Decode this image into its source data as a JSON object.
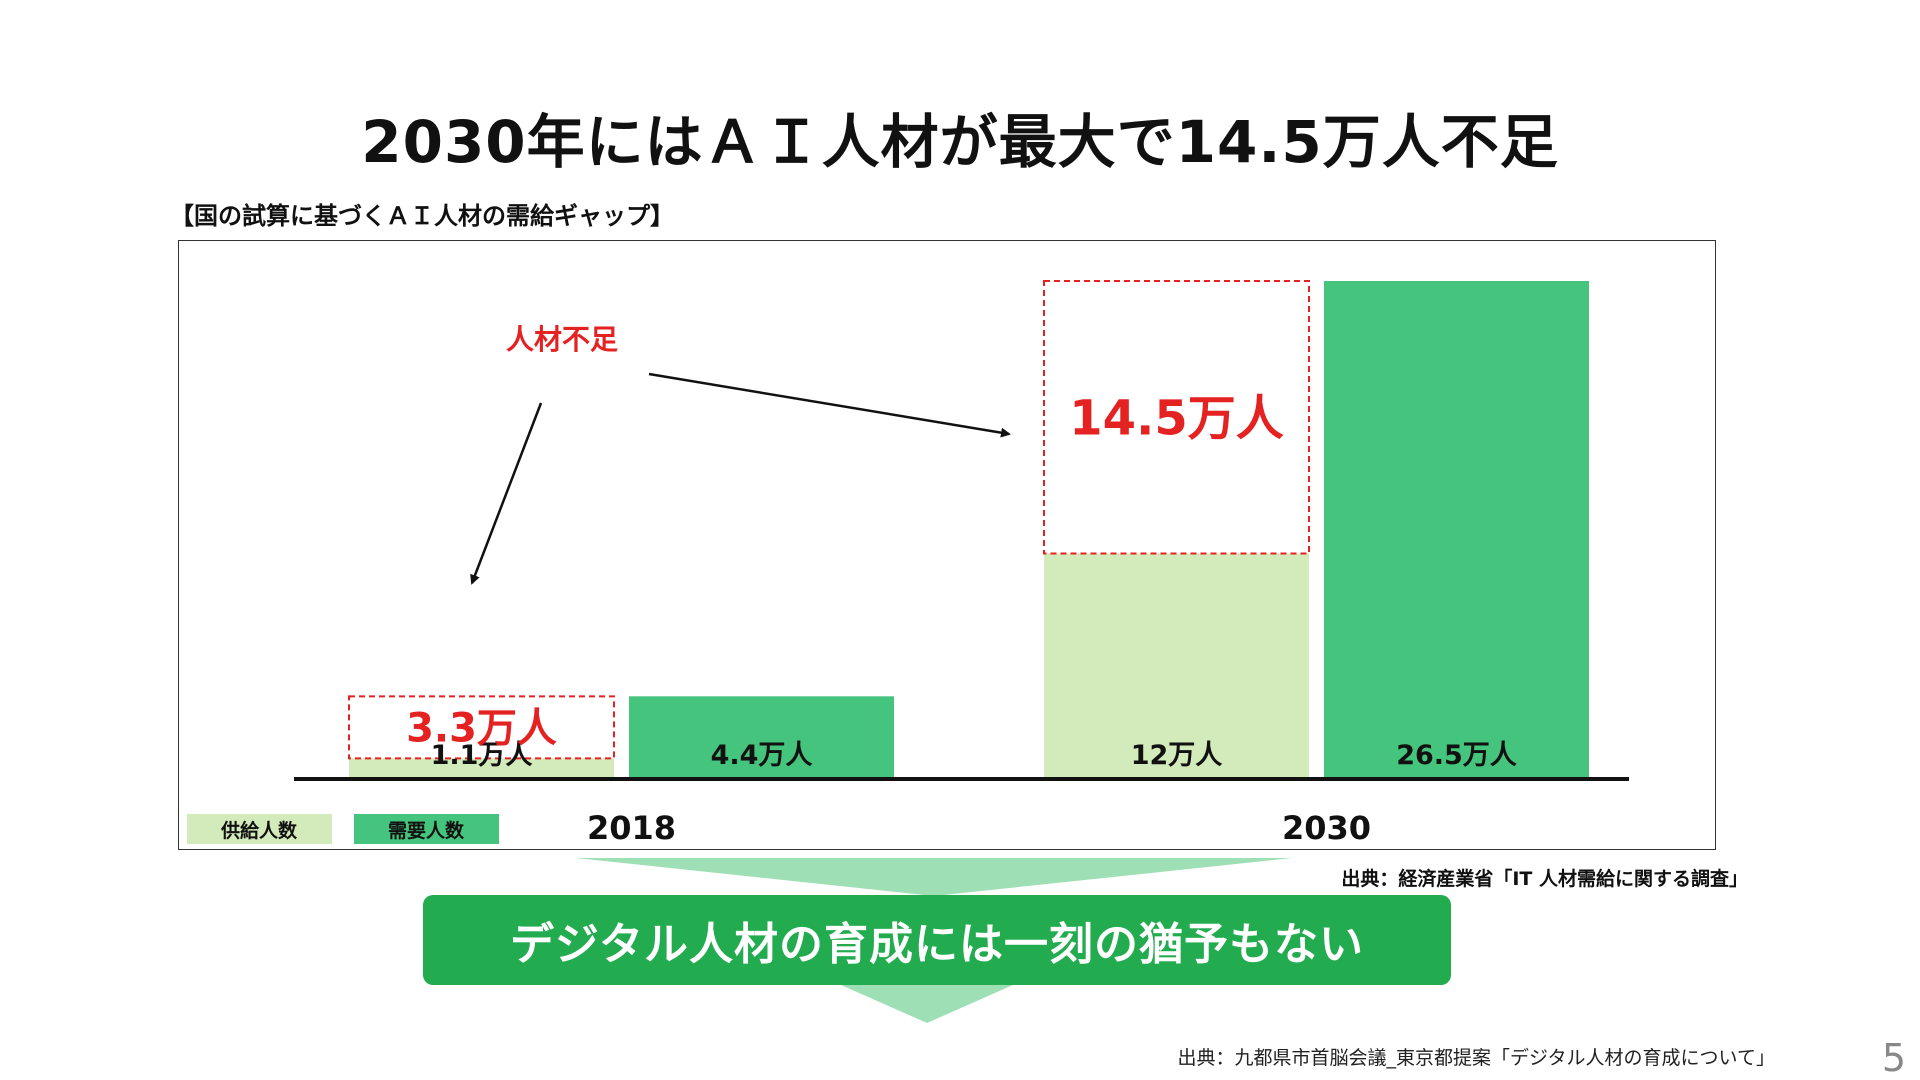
{
  "title": "2030年にはＡＩ人材が最大で14.5万人不足",
  "subtitle": "【国の試算に基づくＡＩ人材の需給ギャップ】",
  "colors": {
    "supply": "#d3ebbb",
    "demand": "#44c47c",
    "shortage": "#e52222",
    "banner": "#23ab50",
    "banner_tri": "#9fdfb6"
  },
  "chart_data": {
    "type": "bar",
    "categories": [
      "2018",
      "2030"
    ],
    "series": [
      {
        "name": "供給人数",
        "values": [
          1.1,
          12
        ],
        "labels": [
          "1.1万人",
          "12万人"
        ]
      },
      {
        "name": "需要人数",
        "values": [
          4.4,
          26.5
        ],
        "labels": [
          "4.4万人",
          "26.5万人"
        ]
      }
    ],
    "shortage": {
      "name": "人材不足",
      "values": [
        3.3,
        14.5
      ],
      "labels": [
        "3.3万人",
        "14.5万人"
      ]
    },
    "unit": "万人",
    "ylim": [
      0,
      26.5
    ],
    "legend": [
      "供給人数",
      "需要人数"
    ],
    "legend_position": "bottom-left",
    "grid": false
  },
  "source1": "出典：経済産業省「IT 人材需給に関する調査」",
  "banner_text": "デジタル人材の育成には一刻の猶予もない",
  "source2": "出典：九都県市首脳会議_東京都提案「デジタル人材の育成について」",
  "page_number": "5"
}
